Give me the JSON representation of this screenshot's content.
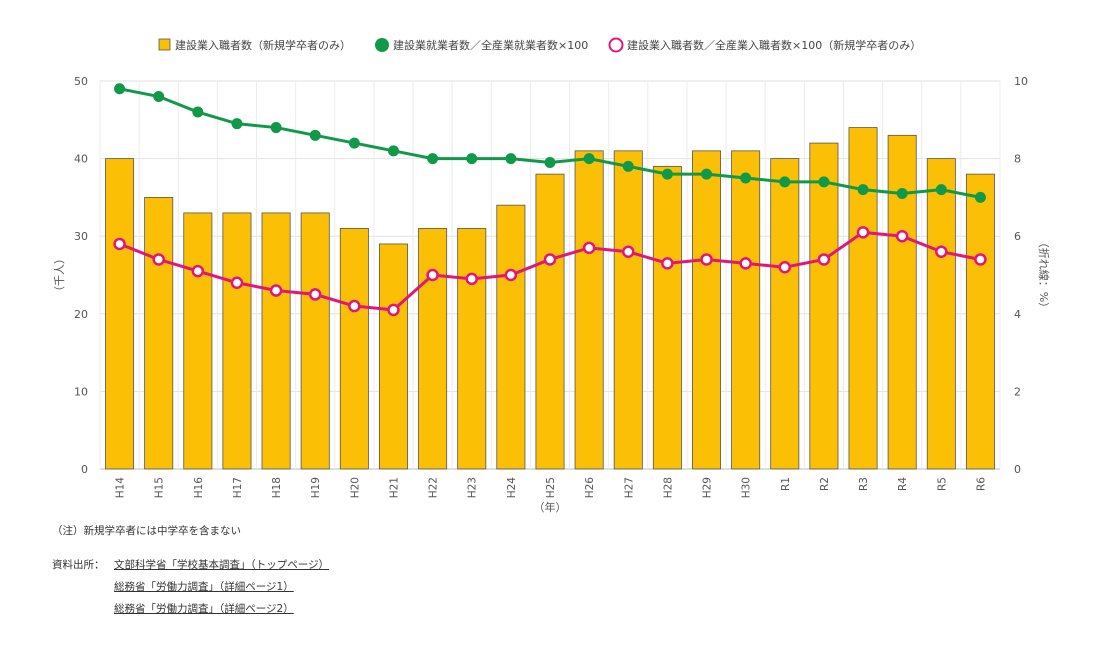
{
  "chart_data": {
    "type": "bar+line",
    "categories": [
      "H14",
      "H15",
      "H16",
      "H17",
      "H18",
      "H19",
      "H20",
      "H21",
      "H22",
      "H23",
      "H24",
      "H25",
      "H26",
      "H27",
      "H28",
      "H29",
      "H30",
      "R1",
      "R2",
      "R3",
      "R4",
      "R5",
      "R6"
    ],
    "series": [
      {
        "name": "建設業入職者数（新規学卒者のみ）",
        "type": "bar",
        "axis": "left",
        "color": "#fbbf06",
        "values": [
          40,
          35,
          33,
          33,
          33,
          33,
          31,
          29,
          31,
          31,
          34,
          38,
          41,
          41,
          39,
          41,
          41,
          40,
          42,
          44,
          43,
          40,
          38
        ]
      },
      {
        "name": "建設業就業者数／全産業就業者数×100",
        "type": "line",
        "axis": "right",
        "color": "#11994a",
        "values": [
          9.8,
          9.6,
          9.2,
          8.9,
          8.8,
          8.6,
          8.4,
          8.2,
          8.0,
          8.0,
          8.0,
          7.9,
          8.0,
          7.8,
          7.6,
          7.6,
          7.5,
          7.4,
          7.4,
          7.2,
          7.1,
          7.2,
          7.0
        ]
      },
      {
        "name": "建設業入職者数／全産業入職者数×100（新規学卒者のみ）",
        "type": "line",
        "axis": "right",
        "color": "#e01778",
        "values": [
          5.8,
          5.4,
          5.1,
          4.8,
          4.6,
          4.5,
          4.2,
          4.1,
          5.0,
          4.9,
          5.0,
          5.4,
          5.7,
          5.6,
          5.3,
          5.4,
          5.3,
          5.2,
          5.4,
          6.1,
          6.0,
          5.6,
          5.4
        ]
      }
    ],
    "ylim": [
      0,
      50
    ],
    "y_ticks": [
      0,
      10,
      20,
      30,
      40,
      50
    ],
    "y2lim": [
      0,
      10
    ],
    "y2_ticks": [
      0,
      2,
      4,
      6,
      8,
      10
    ],
    "ylabel": "（千人）",
    "y2label": "（折れ線：%）",
    "xlabel": "（年）",
    "legend_position": "top-center"
  },
  "note": "（注）新規学卒者には中学卒を含まない",
  "sources": {
    "label": "資料出所：",
    "links": [
      "文部科学省「学校基本調査」（トップページ）",
      "総務省「労働力調査」（詳細ページ1）",
      "総務省「労働力調査」（詳細ページ2）"
    ]
  }
}
